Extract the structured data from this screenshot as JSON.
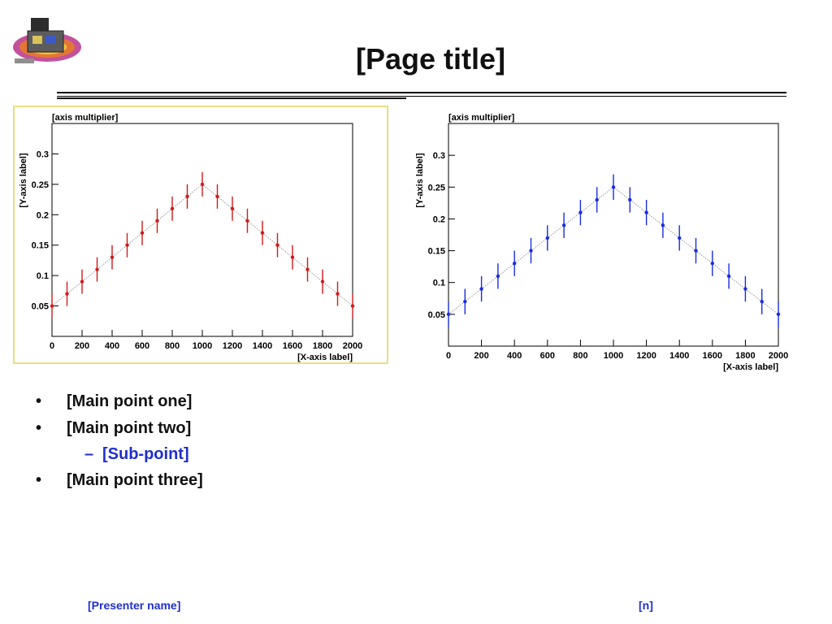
{
  "slide": {
    "title": "[Page title]",
    "bullets": [
      {
        "kind": "main",
        "text": "[Main point one]"
      },
      {
        "kind": "main",
        "text": "[Main point two]"
      },
      {
        "kind": "sub",
        "text": "[Sub-point]"
      },
      {
        "kind": "main",
        "text": "[Main point three]"
      }
    ],
    "footer": {
      "author": "[Presenter name]",
      "page": "[n]"
    }
  },
  "icons": [
    "satellite-logo-icon"
  ],
  "colors": {
    "text": "#111111",
    "accent_blue": "#1f2fd0",
    "panel_border": "#e9de82",
    "point_red": "#d11a1a",
    "point_blue": "#1a2de0"
  },
  "chart_data": [
    {
      "type": "scatter",
      "title": "",
      "xlabel": "[X-axis label]",
      "ylabel": "[Y-axis label]",
      "exponent_label": "[axis multiplier]",
      "xlim": [
        0,
        2000
      ],
      "ylim": [
        0,
        0.35
      ],
      "xticks": [
        0,
        200,
        400,
        600,
        800,
        1000,
        1200,
        1400,
        1600,
        1800,
        2000
      ],
      "yticks": [
        0.05,
        0.1,
        0.15,
        0.2,
        0.25,
        0.3
      ],
      "series": [
        {
          "x": [
            0,
            100,
            200,
            300,
            400,
            500,
            600,
            700,
            800,
            900,
            1000,
            1100,
            1200,
            1300,
            1400,
            1500,
            1600,
            1700,
            1800,
            1900,
            2000
          ],
          "y": [
            0.05,
            0.07,
            0.09,
            0.11,
            0.13,
            0.15,
            0.17,
            0.19,
            0.21,
            0.23,
            0.25,
            0.23,
            0.21,
            0.19,
            0.17,
            0.15,
            0.13,
            0.11,
            0.09,
            0.07,
            0.05
          ],
          "err": [
            0.02,
            0.02,
            0.02,
            0.02,
            0.02,
            0.02,
            0.02,
            0.02,
            0.02,
            0.02,
            0.02,
            0.02,
            0.02,
            0.02,
            0.02,
            0.02,
            0.02,
            0.02,
            0.02,
            0.02,
            0.02
          ]
        }
      ]
    },
    {
      "type": "scatter",
      "title": "",
      "xlabel": "[X-axis label]",
      "ylabel": "[Y-axis label]",
      "exponent_label": "[axis multiplier]",
      "xlim": [
        0,
        2000
      ],
      "ylim": [
        0,
        0.35
      ],
      "xticks": [
        0,
        200,
        400,
        600,
        800,
        1000,
        1200,
        1400,
        1600,
        1800,
        2000
      ],
      "yticks": [
        0.05,
        0.1,
        0.15,
        0.2,
        0.25,
        0.3
      ],
      "series": [
        {
          "x": [
            0,
            100,
            200,
            300,
            400,
            500,
            600,
            700,
            800,
            900,
            1000,
            1100,
            1200,
            1300,
            1400,
            1500,
            1600,
            1700,
            1800,
            1900,
            2000
          ],
          "y": [
            0.05,
            0.07,
            0.09,
            0.11,
            0.13,
            0.15,
            0.17,
            0.19,
            0.21,
            0.23,
            0.25,
            0.23,
            0.21,
            0.19,
            0.17,
            0.15,
            0.13,
            0.11,
            0.09,
            0.07,
            0.05
          ],
          "err": [
            0.02,
            0.02,
            0.02,
            0.02,
            0.02,
            0.02,
            0.02,
            0.02,
            0.02,
            0.02,
            0.02,
            0.02,
            0.02,
            0.02,
            0.02,
            0.02,
            0.02,
            0.02,
            0.02,
            0.02,
            0.02
          ]
        }
      ]
    }
  ]
}
